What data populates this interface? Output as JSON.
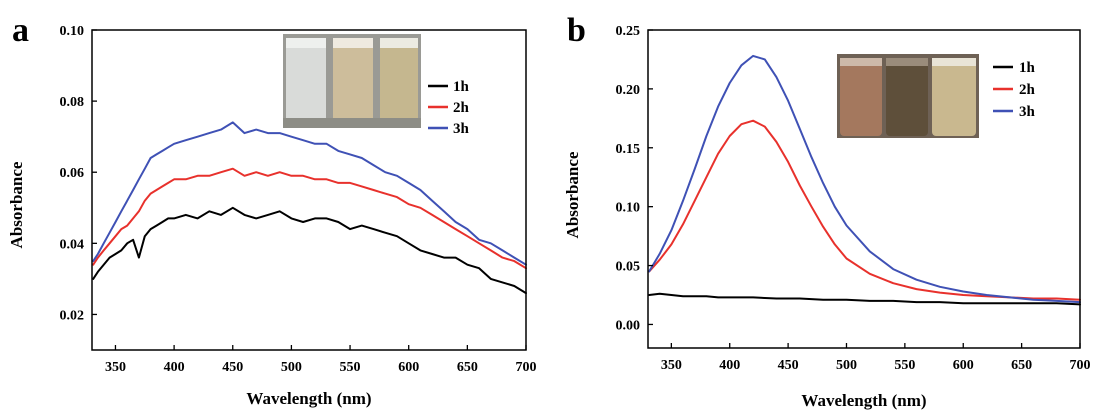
{
  "chart_data": [
    {
      "panel_label": "a",
      "type": "line",
      "xlabel": "Wavelength (nm)",
      "ylabel": "Absorbance",
      "xlim": [
        330,
        700
      ],
      "ylim": [
        0.01,
        0.1
      ],
      "xticks": [
        350,
        400,
        450,
        500,
        550,
        600,
        650,
        700
      ],
      "yticks": [
        0.02,
        0.04,
        0.06,
        0.08,
        0.1
      ],
      "ytick_labels": [
        "0.02",
        "0.04",
        "0.06",
        "0.08",
        "0.10"
      ],
      "legend": "top-right",
      "inset": "photo of three vials (clear, pale yellow, yellow)",
      "series": [
        {
          "name": "1h",
          "color": "#000000",
          "x": [
            331,
            335,
            340,
            345,
            350,
            355,
            360,
            365,
            370,
            375,
            380,
            385,
            390,
            395,
            400,
            410,
            420,
            430,
            440,
            450,
            460,
            470,
            480,
            490,
            500,
            510,
            520,
            530,
            540,
            550,
            560,
            570,
            580,
            590,
            600,
            610,
            620,
            630,
            640,
            650,
            660,
            670,
            680,
            690,
            700
          ],
          "y": [
            0.03,
            0.032,
            0.034,
            0.036,
            0.037,
            0.038,
            0.04,
            0.041,
            0.036,
            0.042,
            0.044,
            0.045,
            0.046,
            0.047,
            0.047,
            0.048,
            0.047,
            0.049,
            0.048,
            0.05,
            0.048,
            0.047,
            0.048,
            0.049,
            0.047,
            0.046,
            0.047,
            0.047,
            0.046,
            0.044,
            0.045,
            0.044,
            0.043,
            0.042,
            0.04,
            0.038,
            0.037,
            0.036,
            0.036,
            0.034,
            0.033,
            0.03,
            0.029,
            0.028,
            0.026
          ]
        },
        {
          "name": "2h",
          "color": "#e8312c",
          "x": [
            331,
            335,
            340,
            345,
            350,
            355,
            360,
            365,
            370,
            375,
            380,
            385,
            390,
            395,
            400,
            410,
            420,
            430,
            440,
            450,
            460,
            470,
            480,
            490,
            500,
            510,
            520,
            530,
            540,
            550,
            560,
            570,
            580,
            590,
            600,
            610,
            620,
            630,
            640,
            650,
            660,
            670,
            680,
            690,
            700
          ],
          "y": [
            0.034,
            0.036,
            0.038,
            0.04,
            0.042,
            0.044,
            0.045,
            0.047,
            0.049,
            0.052,
            0.054,
            0.055,
            0.056,
            0.057,
            0.058,
            0.058,
            0.059,
            0.059,
            0.06,
            0.061,
            0.059,
            0.06,
            0.059,
            0.06,
            0.059,
            0.059,
            0.058,
            0.058,
            0.057,
            0.057,
            0.056,
            0.055,
            0.054,
            0.053,
            0.051,
            0.05,
            0.048,
            0.046,
            0.044,
            0.042,
            0.04,
            0.038,
            0.036,
            0.035,
            0.033
          ]
        },
        {
          "name": "3h",
          "color": "#3f51b5",
          "x": [
            331,
            335,
            340,
            345,
            350,
            355,
            360,
            365,
            370,
            375,
            380,
            385,
            390,
            395,
            400,
            410,
            420,
            430,
            440,
            450,
            460,
            470,
            480,
            490,
            500,
            510,
            520,
            530,
            540,
            550,
            560,
            570,
            580,
            590,
            600,
            610,
            620,
            630,
            640,
            650,
            660,
            670,
            680,
            690,
            700
          ],
          "y": [
            0.035,
            0.037,
            0.04,
            0.043,
            0.046,
            0.049,
            0.052,
            0.055,
            0.058,
            0.061,
            0.064,
            0.065,
            0.066,
            0.067,
            0.068,
            0.069,
            0.07,
            0.071,
            0.072,
            0.074,
            0.071,
            0.072,
            0.071,
            0.071,
            0.07,
            0.069,
            0.068,
            0.068,
            0.066,
            0.065,
            0.064,
            0.062,
            0.06,
            0.059,
            0.057,
            0.055,
            0.052,
            0.049,
            0.046,
            0.044,
            0.041,
            0.04,
            0.038,
            0.036,
            0.034
          ]
        }
      ]
    },
    {
      "panel_label": "b",
      "type": "line",
      "xlabel": "Wavelength (nm)",
      "ylabel": "Absorbance",
      "xlim": [
        330,
        700
      ],
      "ylim": [
        -0.02,
        0.25
      ],
      "xticks": [
        350,
        400,
        450,
        500,
        550,
        600,
        650,
        700
      ],
      "yticks": [
        0.0,
        0.05,
        0.1,
        0.15,
        0.2,
        0.25
      ],
      "ytick_labels": [
        "0.00",
        "0.05",
        "0.10",
        "0.15",
        "0.20",
        "0.25"
      ],
      "legend": "top-right",
      "inset": "photo of three vials (red-brown, dark brown, pale yellow)",
      "series": [
        {
          "name": "1h",
          "color": "#000000",
          "x": [
            331,
            340,
            350,
            360,
            370,
            380,
            390,
            400,
            420,
            440,
            460,
            480,
            500,
            520,
            540,
            560,
            580,
            600,
            620,
            640,
            660,
            680,
            700
          ],
          "y": [
            0.025,
            0.026,
            0.025,
            0.024,
            0.024,
            0.024,
            0.023,
            0.023,
            0.023,
            0.022,
            0.022,
            0.021,
            0.021,
            0.02,
            0.02,
            0.019,
            0.019,
            0.018,
            0.018,
            0.018,
            0.018,
            0.018,
            0.017
          ]
        },
        {
          "name": "2h",
          "color": "#e8312c",
          "x": [
            331,
            340,
            350,
            360,
            370,
            380,
            390,
            400,
            410,
            420,
            430,
            440,
            450,
            460,
            470,
            480,
            490,
            500,
            520,
            540,
            560,
            580,
            600,
            620,
            640,
            660,
            680,
            700
          ],
          "y": [
            0.045,
            0.055,
            0.068,
            0.085,
            0.105,
            0.125,
            0.145,
            0.16,
            0.17,
            0.173,
            0.168,
            0.155,
            0.138,
            0.118,
            0.1,
            0.083,
            0.068,
            0.056,
            0.043,
            0.035,
            0.03,
            0.027,
            0.025,
            0.024,
            0.023,
            0.022,
            0.022,
            0.021
          ]
        },
        {
          "name": "3h",
          "color": "#3f51b5",
          "x": [
            331,
            340,
            350,
            360,
            370,
            380,
            390,
            400,
            410,
            420,
            430,
            440,
            450,
            460,
            470,
            480,
            490,
            500,
            520,
            540,
            560,
            580,
            600,
            620,
            640,
            660,
            680,
            700
          ],
          "y": [
            0.045,
            0.06,
            0.08,
            0.105,
            0.132,
            0.16,
            0.185,
            0.205,
            0.22,
            0.228,
            0.225,
            0.21,
            0.19,
            0.166,
            0.142,
            0.12,
            0.1,
            0.084,
            0.062,
            0.047,
            0.038,
            0.032,
            0.028,
            0.025,
            0.023,
            0.021,
            0.02,
            0.019
          ]
        }
      ]
    }
  ]
}
